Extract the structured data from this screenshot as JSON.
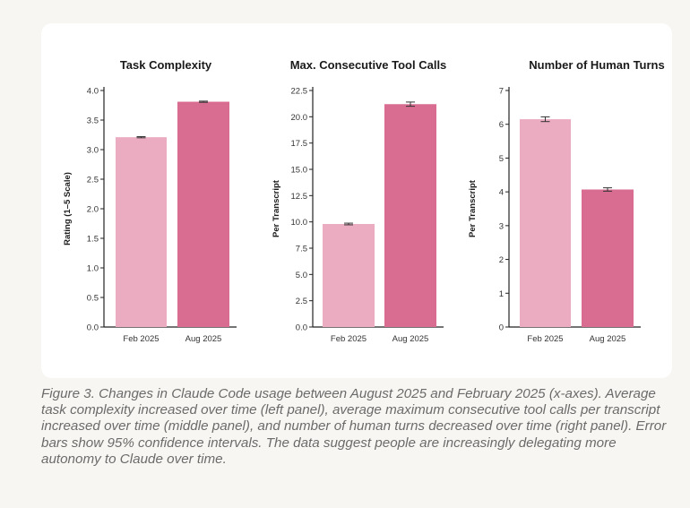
{
  "chart_data": [
    {
      "type": "bar",
      "title": "Task Complexity",
      "xlabel": "",
      "ylabel": "Rating (1–5 Scale)",
      "categories": [
        "Feb 2025",
        "Aug 2025"
      ],
      "values": [
        3.21,
        3.81
      ],
      "error": [
        0.01,
        0.01
      ],
      "ylim": [
        0,
        4.0
      ],
      "yticks": [
        "0.0",
        "0.5",
        "1.0",
        "1.5",
        "2.0",
        "2.5",
        "3.0",
        "3.5",
        "4.0"
      ],
      "colors": [
        "#ebabc0",
        "#d96c91"
      ]
    },
    {
      "type": "bar",
      "title": "Max. Consecutive Tool Calls",
      "xlabel": "",
      "ylabel": "Per Transcript",
      "categories": [
        "Feb 2025",
        "Aug 2025"
      ],
      "values": [
        9.8,
        21.2
      ],
      "error": [
        0.08,
        0.2
      ],
      "ylim": [
        0,
        22.5
      ],
      "yticks": [
        "0.0",
        "2.5",
        "5.0",
        "7.5",
        "10.0",
        "12.5",
        "15.0",
        "17.5",
        "20.0",
        "22.5"
      ],
      "colors": [
        "#ebabc0",
        "#d96c91"
      ]
    },
    {
      "type": "bar",
      "title": "Number of Human Turns",
      "xlabel": "",
      "ylabel": "Per Transcript",
      "categories": [
        "Feb 2025",
        "Aug 2025"
      ],
      "values": [
        6.15,
        4.07
      ],
      "error": [
        0.07,
        0.05
      ],
      "ylim": [
        0,
        7
      ],
      "yticks": [
        "0",
        "1",
        "2",
        "3",
        "4",
        "5",
        "6",
        "7"
      ],
      "colors": [
        "#ebabc0",
        "#d96c91"
      ]
    }
  ],
  "caption": "Figure 3. Changes in Claude Code usage between August 2025 and February 2025 (x-axes). Average task complexity increased over time (left panel), average maximum consecutive tool calls per transcript increased over time (middle panel), and number of human turns decreased over time (right panel). Error bars show 95% confidence intervals. The data suggest people are increasingly delegating more autonomy to Claude over time."
}
